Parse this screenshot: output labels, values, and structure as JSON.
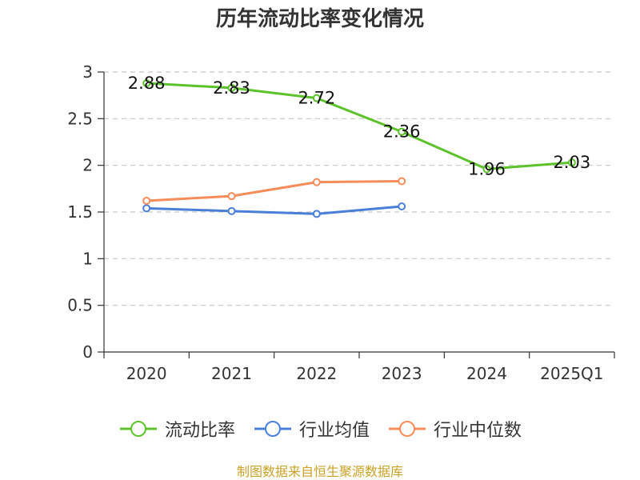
{
  "chart_data": {
    "type": "line",
    "title": "历年流动比率变化情况",
    "categories": [
      "2020",
      "2021",
      "2022",
      "2023",
      "2024",
      "2025Q1"
    ],
    "ylim": [
      0,
      3
    ],
    "yticks": [
      "0",
      "0.5",
      "1",
      "1.5",
      "2",
      "2.5",
      "3"
    ],
    "grid": true,
    "legend_position": "bottom",
    "series": [
      {
        "name": "流动比率",
        "color": "#5cc22b",
        "values": [
          2.88,
          2.83,
          2.72,
          2.36,
          1.96,
          2.03
        ],
        "labels": [
          "2.88",
          "2.83",
          "2.72",
          "2.36",
          "1.96",
          "2.03"
        ]
      },
      {
        "name": "行业均值",
        "color": "#4a7fd8",
        "values": [
          1.54,
          1.51,
          1.48,
          1.56,
          null,
          null
        ]
      },
      {
        "name": "行业中位数",
        "color": "#f58c5a",
        "values": [
          1.62,
          1.67,
          1.82,
          1.83,
          null,
          null
        ]
      }
    ]
  },
  "source": "制图数据来自恒生聚源数据库"
}
